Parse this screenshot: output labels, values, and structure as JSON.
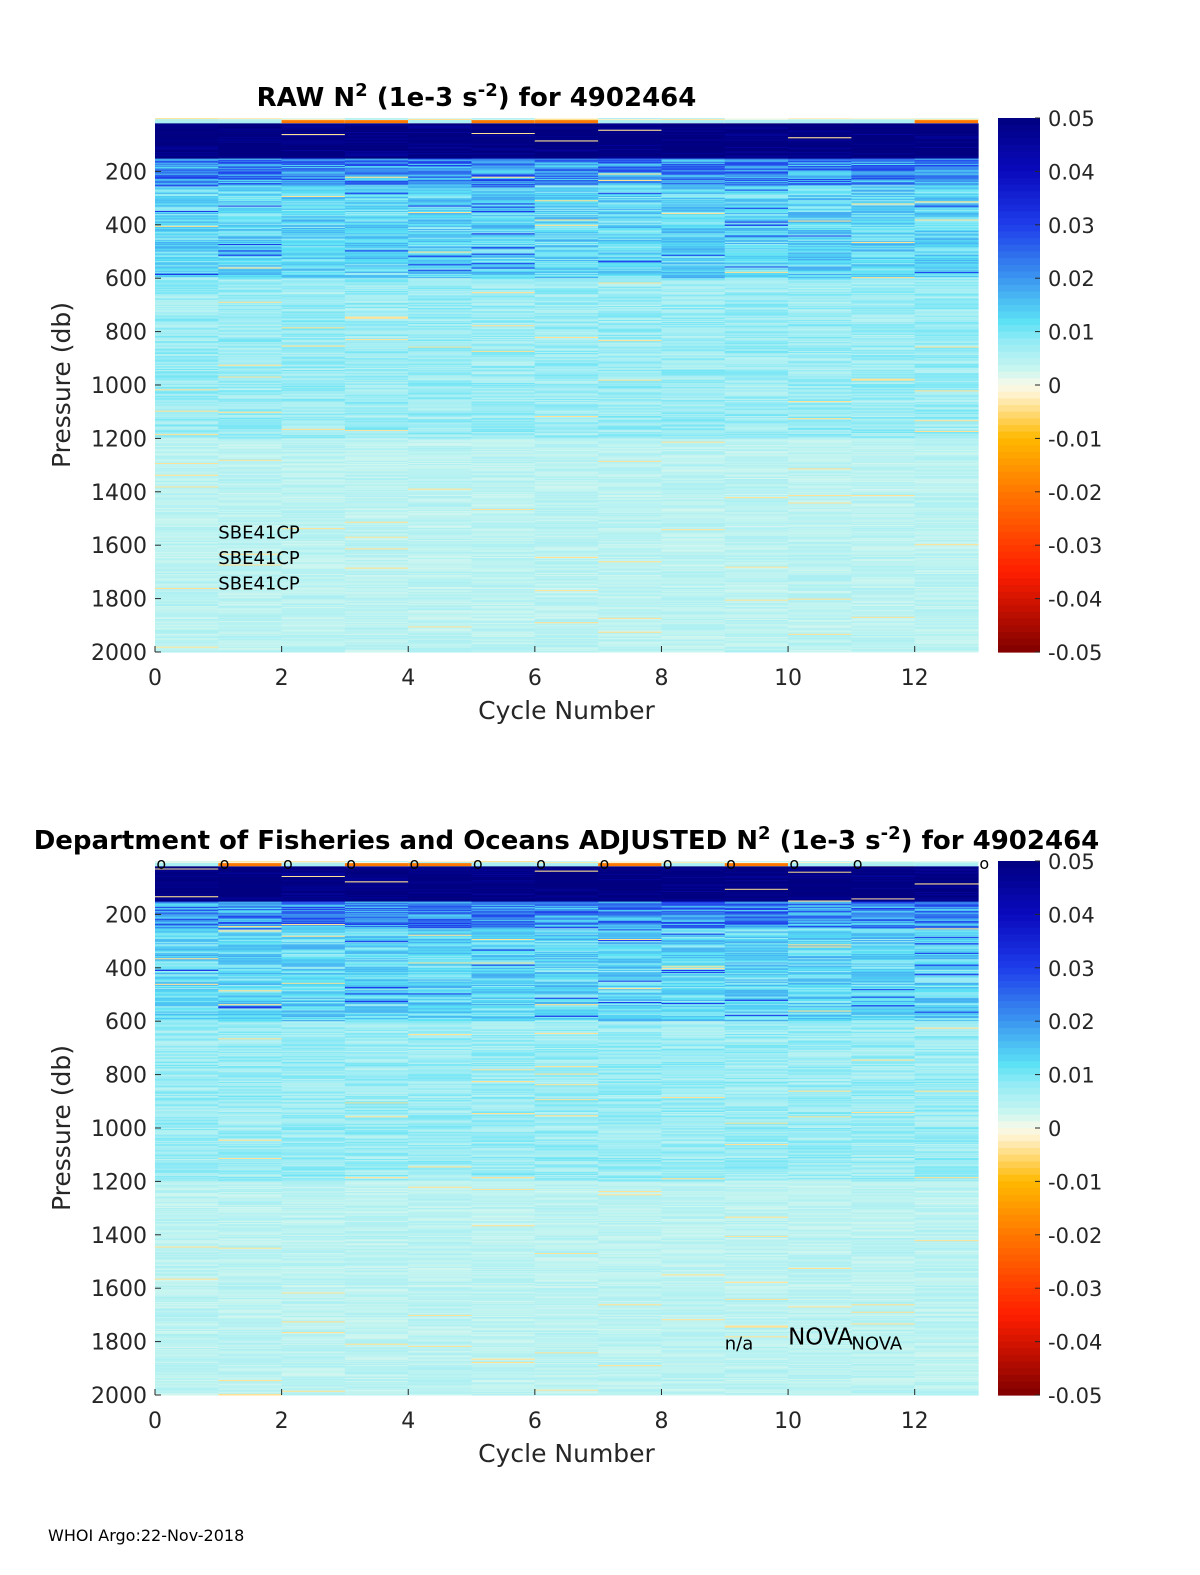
{
  "chart_data": [
    {
      "type": "heatmap",
      "title_parts": [
        "RAW N",
        "2",
        " (1e-3 s",
        "-2",
        ") for 4902464"
      ],
      "xlabel": "Cycle Number",
      "ylabel": "Pressure (db)",
      "xlim": [
        0,
        13
      ],
      "ylim": [
        2000,
        0
      ],
      "y_reversed": true,
      "xticks": [
        "0",
        "2",
        "4",
        "6",
        "8",
        "10",
        "12"
      ],
      "yticks": [
        "200",
        "400",
        "600",
        "800",
        "1000",
        "1200",
        "1400",
        "1600",
        "1800",
        "2000"
      ],
      "colorbar": {
        "colormap": "jet-diverging",
        "range": [
          -0.05,
          0.05
        ],
        "ticks": [
          "0.05",
          "0.04",
          "0.03",
          "0.02",
          "0.01",
          "0",
          "-0.01",
          "-0.02",
          "-0.03",
          "-0.04",
          "-0.05"
        ]
      },
      "cycles": [
        1,
        2,
        3,
        4,
        5,
        6,
        7,
        8,
        9,
        10,
        11,
        12,
        13
      ],
      "profile_summary": {
        "near_surface_0_150db": 0.05,
        "150_250db": 0.02,
        "250_600db": 0.012,
        "600_1200db": 0.007,
        "1200_2000db": 0.004
      },
      "annotations": [
        {
          "text": "SBE41CP",
          "x": 1,
          "y": 1575
        },
        {
          "text": "SBE41CP",
          "x": 1,
          "y": 1670
        },
        {
          "text": "SBE41CP",
          "x": 1,
          "y": 1765
        }
      ]
    },
    {
      "type": "heatmap",
      "title_parts": [
        "Department of Fisheries and Oceans  ADJUSTED N",
        "2",
        " (1e-3 s",
        "-2",
        ") for 4902464"
      ],
      "xlabel": "Cycle Number",
      "ylabel": "Pressure (db)",
      "xlim": [
        0,
        13
      ],
      "ylim": [
        2000,
        0
      ],
      "y_reversed": true,
      "xticks": [
        "0",
        "2",
        "4",
        "6",
        "8",
        "10",
        "12"
      ],
      "yticks": [
        "200",
        "400",
        "600",
        "800",
        "1000",
        "1200",
        "1400",
        "1600",
        "1800",
        "2000"
      ],
      "colorbar": {
        "colormap": "jet-diverging",
        "range": [
          -0.05,
          0.05
        ],
        "ticks": [
          "0.05",
          "0.04",
          "0.03",
          "0.02",
          "0.01",
          "0",
          "-0.01",
          "-0.02",
          "-0.03",
          "-0.04",
          "-0.05"
        ]
      },
      "cycles": [
        1,
        2,
        3,
        4,
        5,
        6,
        7,
        8,
        9,
        10,
        11,
        12,
        13
      ],
      "qc_flag_label": "o",
      "qc_flag_cycles": [
        0.1,
        1.1,
        2.1,
        3.1,
        4.1,
        5.1,
        6.1,
        7.1,
        8.1,
        9.1,
        10.1,
        11.1,
        13.1
      ],
      "profile_summary": {
        "near_surface_0_150db": 0.05,
        "150_250db": 0.02,
        "250_600db": 0.012,
        "600_1200db": 0.007,
        "1200_2000db": 0.004
      },
      "annotations": [
        {
          "text": "n/a",
          "x": 9,
          "y": 1830,
          "size": "normal"
        },
        {
          "text": "NOVA",
          "x": 10,
          "y": 1810,
          "size": "big"
        },
        {
          "text": "NOVA",
          "x": 11,
          "y": 1830,
          "size": "normal"
        }
      ]
    }
  ],
  "footer": "WHOI Argo:22-Nov-2018"
}
